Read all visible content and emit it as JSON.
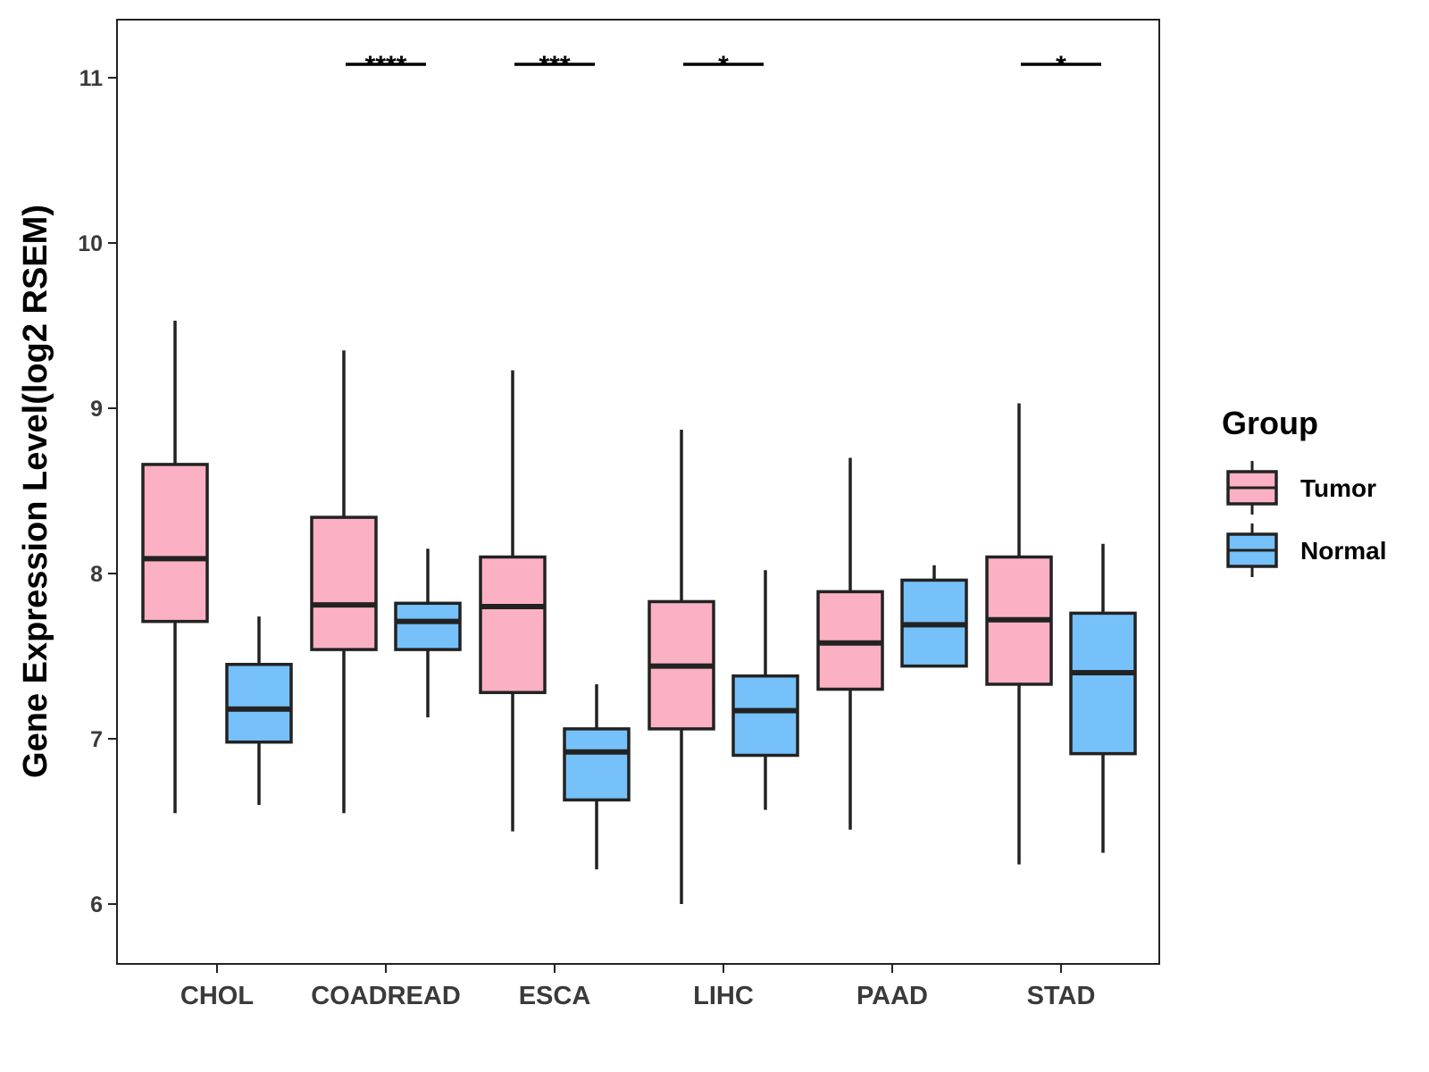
{
  "chart_data": {
    "type": "boxplot",
    "title": "",
    "xlabel": "",
    "ylabel": "Gene Expression Level(log2 RSEM)",
    "ylim": [
      5.65,
      11.35
    ],
    "yticks": [
      6,
      7,
      8,
      9,
      10,
      11
    ],
    "grid": false,
    "legend_position": "right",
    "legend": {
      "title": "Group",
      "items": [
        {
          "name": "Tumor",
          "color": "#fbb1c3"
        },
        {
          "name": "Normal",
          "color": "#76c1f9"
        }
      ]
    },
    "categories": [
      "CHOL",
      "COADREAD",
      "ESCA",
      "LIHC",
      "PAAD",
      "STAD"
    ],
    "series": [
      {
        "name": "Tumor",
        "color": "#fbb1c3",
        "boxes": [
          {
            "min": 6.55,
            "q1": 7.71,
            "median": 8.09,
            "q3": 8.66,
            "max": 9.53
          },
          {
            "min": 6.55,
            "q1": 7.54,
            "median": 7.81,
            "q3": 8.34,
            "max": 9.35
          },
          {
            "min": 6.44,
            "q1": 7.28,
            "median": 7.8,
            "q3": 8.1,
            "max": 9.23
          },
          {
            "min": 6.0,
            "q1": 7.06,
            "median": 7.44,
            "q3": 7.83,
            "max": 8.87
          },
          {
            "min": 6.45,
            "q1": 7.3,
            "median": 7.58,
            "q3": 7.89,
            "max": 8.7
          },
          {
            "min": 6.24,
            "q1": 7.33,
            "median": 7.72,
            "q3": 8.1,
            "max": 9.03
          }
        ]
      },
      {
        "name": "Normal",
        "color": "#76c1f9",
        "boxes": [
          {
            "min": 6.6,
            "q1": 6.98,
            "median": 7.18,
            "q3": 7.45,
            "max": 7.74
          },
          {
            "min": 7.13,
            "q1": 7.54,
            "median": 7.71,
            "q3": 7.82,
            "max": 8.15
          },
          {
            "min": 6.21,
            "q1": 6.63,
            "median": 6.92,
            "q3": 7.06,
            "max": 7.33
          },
          {
            "min": 6.57,
            "q1": 6.9,
            "median": 7.17,
            "q3": 7.38,
            "max": 8.02
          },
          {
            "min": 7.44,
            "q1": 7.44,
            "median": 7.69,
            "q3": 7.96,
            "max": 8.05
          },
          {
            "min": 6.31,
            "q1": 6.91,
            "median": 7.4,
            "q3": 7.76,
            "max": 8.18
          }
        ]
      }
    ],
    "significance": [
      {
        "category": "COADREAD",
        "label": "****",
        "y": 11.07
      },
      {
        "category": "ESCA",
        "label": "***",
        "y": 11.07
      },
      {
        "category": "LIHC",
        "label": "*",
        "y": 11.07
      },
      {
        "category": "STAD",
        "label": "*",
        "y": 11.07
      }
    ]
  }
}
